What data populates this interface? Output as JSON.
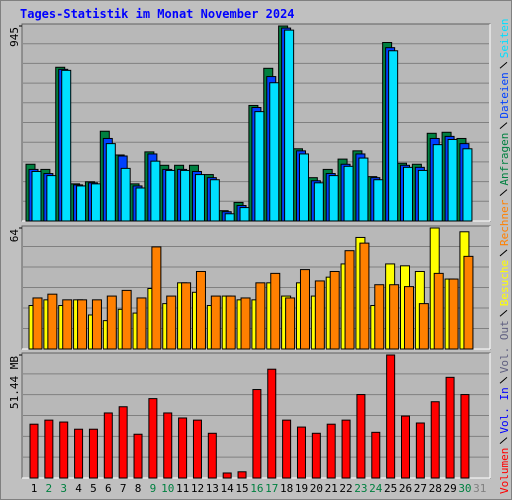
{
  "chart_data": [
    {
      "type": "bar",
      "title": "Tages-Statistik im Monat November 2024",
      "ylim": [
        0,
        945
      ],
      "yticks": [
        945
      ],
      "series": [
        {
          "name": "Anfragen",
          "color": "#008040",
          "values": [
            275,
            250,
            745,
            180,
            190,
            435,
            320,
            180,
            335,
            270,
            270,
            270,
            225,
            50,
            90,
            560,
            740,
            945,
            350,
            210,
            250,
            300,
            340,
            215,
            865,
            280,
            275,
            425,
            430,
            400,
            null
          ]
        },
        {
          "name": "Dateien",
          "color": "#0040ff",
          "values": [
            250,
            230,
            735,
            175,
            185,
            400,
            315,
            170,
            325,
            250,
            250,
            240,
            210,
            45,
            75,
            550,
            700,
            935,
            340,
            195,
            230,
            275,
            325,
            210,
            840,
            270,
            260,
            400,
            410,
            375,
            null
          ]
        },
        {
          "name": "Seiten",
          "color": "#00e0ff",
          "values": [
            240,
            220,
            730,
            170,
            180,
            375,
            255,
            160,
            290,
            245,
            245,
            225,
            200,
            35,
            65,
            530,
            670,
            925,
            325,
            185,
            220,
            265,
            305,
            200,
            825,
            260,
            245,
            370,
            395,
            350,
            null
          ]
        }
      ]
    },
    {
      "type": "bar",
      "ylim": [
        0,
        64
      ],
      "yticks": [
        64
      ],
      "series": [
        {
          "name": "Besuche",
          "color": "#ffff00",
          "values": [
            23,
            26,
            23,
            26,
            18,
            15,
            21,
            19,
            32,
            24,
            35,
            30,
            23,
            28,
            26,
            26,
            35,
            28,
            35,
            28,
            38,
            45,
            59,
            23,
            45,
            44,
            41,
            64,
            37,
            62,
            null
          ]
        },
        {
          "name": "Rechner",
          "color": "#ff8000",
          "values": [
            27,
            29,
            26,
            26,
            26,
            28,
            31,
            27,
            54,
            28,
            35,
            41,
            28,
            28,
            27,
            35,
            40,
            27,
            42,
            36,
            41,
            52,
            56,
            34,
            34,
            33,
            24,
            40,
            37,
            49,
            null
          ]
        }
      ]
    },
    {
      "type": "bar",
      "ylim": [
        0,
        51.44
      ],
      "yticks": [
        {
          "value": 51.44,
          "label": "51.44 MB"
        }
      ],
      "categories": [
        "1",
        "2",
        "3",
        "4",
        "5",
        "6",
        "7",
        "8",
        "9",
        "10",
        "11",
        "12",
        "13",
        "14",
        "15",
        "16",
        "17",
        "18",
        "19",
        "20",
        "21",
        "22",
        "23",
        "24",
        "25",
        "26",
        "27",
        "28",
        "29",
        "30",
        "31"
      ],
      "category_colors": [
        "#000000",
        "#008040",
        "#008040",
        "#000000",
        "#000000",
        "#000000",
        "#000000",
        "#000000",
        "#008040",
        "#008040",
        "#000000",
        "#000000",
        "#000000",
        "#000000",
        "#000000",
        "#008040",
        "#008040",
        "#000000",
        "#000000",
        "#000000",
        "#000000",
        "#000000",
        "#008040",
        "#008040",
        "#000000",
        "#000000",
        "#000000",
        "#000000",
        "#000000",
        "#008040",
        "#808080"
      ],
      "series": [
        {
          "name": "Volumen",
          "color": "#ff0000",
          "values": [
            22.5,
            24.2,
            23.4,
            20.4,
            20.4,
            27.2,
            29.8,
            18.3,
            33.2,
            27.2,
            25.1,
            24.2,
            18.7,
            2.1,
            2.6,
            37.0,
            45.5,
            24.2,
            21.3,
            18.7,
            22.5,
            24.2,
            34.9,
            19.1,
            51.44,
            25.9,
            23.0,
            31.9,
            42.1,
            34.9,
            null
          ]
        },
        {
          "name": "Vol. In",
          "color": "#0000ff",
          "values": [
            null,
            null,
            null,
            null,
            null,
            null,
            null,
            null,
            null,
            null,
            null,
            null,
            null,
            null,
            null,
            null,
            null,
            null,
            null,
            null,
            null,
            null,
            null,
            null,
            null,
            null,
            null,
            null,
            null,
            null,
            null
          ]
        },
        {
          "name": "Vol. Out",
          "color": "#606080",
          "values": [
            null,
            null,
            null,
            null,
            null,
            null,
            null,
            null,
            null,
            null,
            null,
            null,
            null,
            null,
            null,
            null,
            null,
            null,
            null,
            null,
            null,
            null,
            null,
            null,
            null,
            null,
            null,
            null,
            null,
            null,
            null
          ]
        }
      ]
    }
  ]
}
